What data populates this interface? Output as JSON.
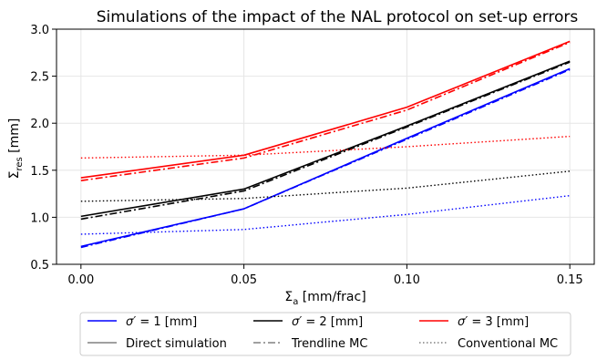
{
  "chart_data": {
    "type": "line",
    "title": "Simulations of the impact of the NAL protocol on set-up errors",
    "xlabel": "Σa [mm/frac]",
    "ylabel": "Σres [mm]",
    "xlim": [
      -0.0075,
      0.1575
    ],
    "ylim": [
      0.5,
      3.0
    ],
    "x_ticks": [
      0.0,
      0.05,
      0.1,
      0.15
    ],
    "x_tick_labels": [
      "0.00",
      "0.05",
      "0.10",
      "0.15"
    ],
    "y_ticks": [
      0.5,
      1.0,
      1.5,
      2.0,
      2.5,
      3.0
    ],
    "y_tick_labels": [
      "0.5",
      "1.0",
      "1.5",
      "2.0",
      "2.5",
      "3.0"
    ],
    "grid": true,
    "legend_position": "bottom-outside",
    "x": [
      0.0,
      0.05,
      0.1,
      0.15
    ],
    "series": [
      {
        "sigma": "1",
        "method": "Direct simulation",
        "color": "#0000ff",
        "style": "solid",
        "values": [
          0.69,
          1.09,
          1.84,
          2.58
        ]
      },
      {
        "sigma": "1",
        "method": "Trendline MC",
        "color": "#0000ff",
        "style": "dashdot",
        "values": [
          0.68,
          1.09,
          1.83,
          2.57
        ]
      },
      {
        "sigma": "1",
        "method": "Conventional MC",
        "color": "#0000ff",
        "style": "dotted",
        "values": [
          0.82,
          0.87,
          1.03,
          1.23
        ]
      },
      {
        "sigma": "2",
        "method": "Direct simulation",
        "color": "#000000",
        "style": "solid",
        "values": [
          1.01,
          1.3,
          1.97,
          2.66
        ]
      },
      {
        "sigma": "2",
        "method": "Trendline MC",
        "color": "#000000",
        "style": "dashdot",
        "values": [
          0.98,
          1.28,
          1.96,
          2.65
        ]
      },
      {
        "sigma": "2",
        "method": "Conventional MC",
        "color": "#000000",
        "style": "dotted",
        "values": [
          1.17,
          1.2,
          1.31,
          1.49
        ]
      },
      {
        "sigma": "3",
        "method": "Direct simulation",
        "color": "#ff0000",
        "style": "solid",
        "values": [
          1.42,
          1.66,
          2.17,
          2.87
        ]
      },
      {
        "sigma": "3",
        "method": "Trendline MC",
        "color": "#ff0000",
        "style": "dashdot",
        "values": [
          1.39,
          1.63,
          2.14,
          2.86
        ]
      },
      {
        "sigma": "3",
        "method": "Conventional MC",
        "color": "#ff0000",
        "style": "dotted",
        "values": [
          1.63,
          1.66,
          1.75,
          1.86
        ]
      }
    ],
    "legend": {
      "row1": [
        {
          "key": "sigma1",
          "color": "#0000ff",
          "style": "solid",
          "prefix": "σ′",
          "suffix": " = 1 [mm]"
        },
        {
          "key": "sigma2",
          "color": "#000000",
          "style": "solid",
          "prefix": "σ′",
          "suffix": " = 2 [mm]"
        },
        {
          "key": "sigma3",
          "color": "#ff0000",
          "style": "solid",
          "prefix": "σ′",
          "suffix": " = 3 [mm]"
        }
      ],
      "row2": [
        {
          "key": "direct",
          "color": "#808080",
          "style": "solid",
          "label": "Direct simulation"
        },
        {
          "key": "trendline",
          "color": "#808080",
          "style": "dashdot",
          "label": "Trendline MC"
        },
        {
          "key": "conventional",
          "color": "#808080",
          "style": "dotted",
          "label": "Conventional MC"
        }
      ]
    }
  }
}
